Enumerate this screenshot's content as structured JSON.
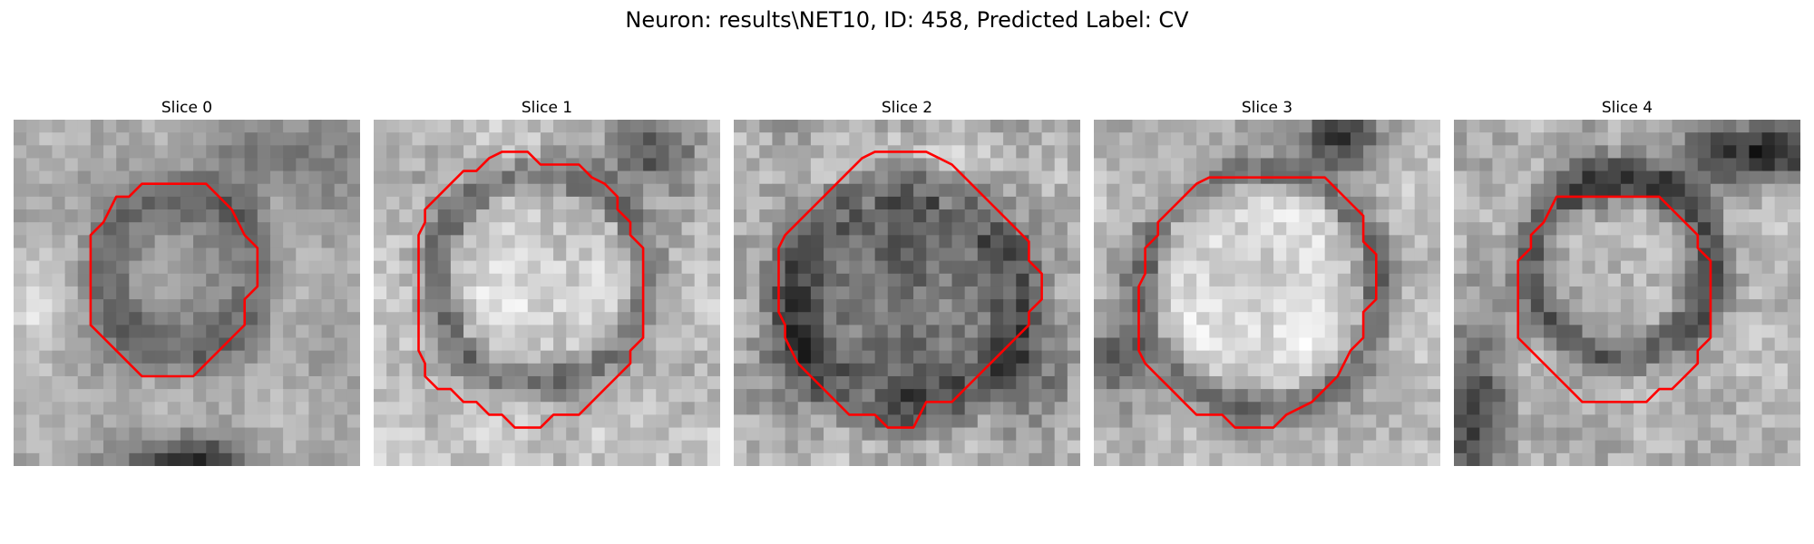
{
  "figure": {
    "title": "Neuron: results\\NET10, ID: 458, Predicted Label: CV",
    "contour_color": "#ff0000",
    "colormap": "gray"
  },
  "panels": [
    {
      "title": "Slice 0"
    },
    {
      "title": "Slice 1"
    },
    {
      "title": "Slice 2"
    },
    {
      "title": "Slice 3"
    },
    {
      "title": "Slice 4"
    }
  ]
}
